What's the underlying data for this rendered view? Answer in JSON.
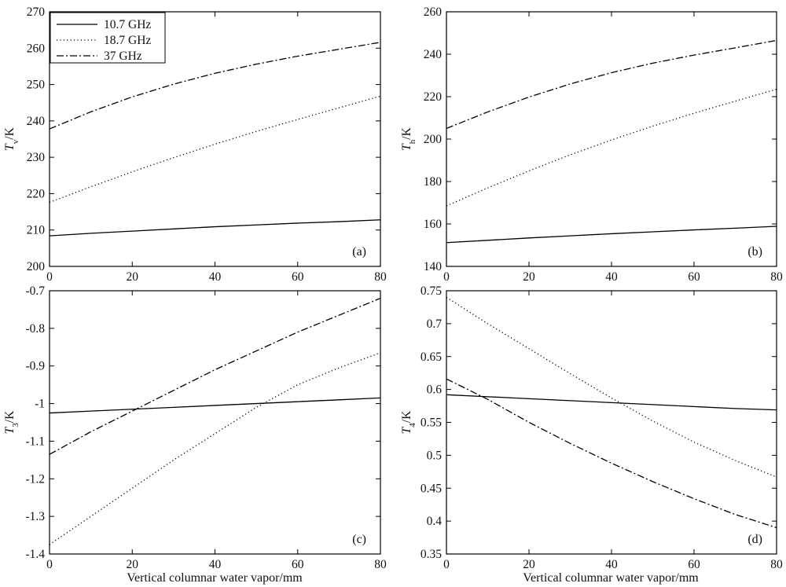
{
  "x_axis_label": "Vertical columnar water vapor/mm",
  "legend": [
    {
      "label": "10.7 GHz",
      "dash": "solid"
    },
    {
      "label": "18.7 GHz",
      "dash": "dotted"
    },
    {
      "label": "37 GHz",
      "dash": "dashdot"
    }
  ],
  "chart_data": [
    {
      "type": "line",
      "panel_label": "(a)",
      "ylabel_main": "T",
      "ylabel_sub": "v",
      "ylabel_unit": "/K",
      "xlim": [
        0,
        80
      ],
      "ylim": [
        200,
        270
      ],
      "xticks": [
        0,
        20,
        40,
        60,
        80
      ],
      "yticks": [
        200,
        210,
        220,
        230,
        240,
        250,
        260,
        270
      ],
      "x": [
        0,
        10,
        20,
        30,
        40,
        50,
        60,
        70,
        80
      ],
      "series": [
        {
          "name": "10.7 GHz",
          "dash": "solid",
          "values": [
            208.4,
            209.1,
            209.7,
            210.3,
            210.9,
            211.4,
            211.9,
            212.3,
            212.8
          ]
        },
        {
          "name": "18.7 GHz",
          "dash": "dotted",
          "values": [
            217.6,
            221.9,
            226.0,
            229.9,
            233.6,
            237.1,
            240.4,
            243.6,
            246.8
          ]
        },
        {
          "name": "37 GHz",
          "dash": "dashdot",
          "values": [
            237.8,
            242.5,
            246.6,
            250.1,
            253.1,
            255.6,
            257.8,
            259.7,
            261.6
          ]
        }
      ]
    },
    {
      "type": "line",
      "panel_label": "(b)",
      "ylabel_main": "T",
      "ylabel_sub": "h",
      "ylabel_unit": "/K",
      "xlim": [
        0,
        80
      ],
      "ylim": [
        140,
        260
      ],
      "xticks": [
        0,
        20,
        40,
        60,
        80
      ],
      "yticks": [
        140,
        160,
        180,
        200,
        220,
        240,
        260
      ],
      "x": [
        0,
        10,
        20,
        30,
        40,
        50,
        60,
        70,
        80
      ],
      "series": [
        {
          "name": "10.7 GHz",
          "dash": "solid",
          "values": [
            151.2,
            152.3,
            153.4,
            154.4,
            155.4,
            156.3,
            157.2,
            158.0,
            158.9
          ]
        },
        {
          "name": "18.7 GHz",
          "dash": "dotted",
          "values": [
            168.5,
            177.0,
            185.0,
            192.6,
            199.6,
            206.1,
            212.2,
            217.9,
            223.5
          ]
        },
        {
          "name": "37 GHz",
          "dash": "dashdot",
          "values": [
            205.0,
            212.8,
            219.8,
            226.0,
            231.3,
            235.8,
            239.6,
            243.0,
            246.5
          ]
        }
      ]
    },
    {
      "type": "line",
      "panel_label": "(c)",
      "ylabel_main": "T",
      "ylabel_sub": "3",
      "ylabel_unit": "/K",
      "xlim": [
        0,
        80
      ],
      "ylim": [
        -1.4,
        -0.7
      ],
      "xticks": [
        0,
        20,
        40,
        60,
        80
      ],
      "yticks": [
        -1.4,
        -1.3,
        -1.2,
        -1.1,
        -1,
        -0.9,
        -0.8,
        -0.7
      ],
      "x": [
        0,
        10,
        20,
        30,
        40,
        50,
        60,
        70,
        80
      ],
      "series": [
        {
          "name": "10.7 GHz",
          "dash": "solid",
          "values": [
            -1.025,
            -1.02,
            -1.015,
            -1.01,
            -1.005,
            -1.0,
            -0.995,
            -0.99,
            -0.985
          ]
        },
        {
          "name": "18.7 GHz",
          "dash": "dotted",
          "values": [
            -1.375,
            -1.3,
            -1.225,
            -1.15,
            -1.08,
            -1.01,
            -0.95,
            -0.905,
            -0.865
          ]
        },
        {
          "name": "37 GHz",
          "dash": "dashdot",
          "values": [
            -1.135,
            -1.075,
            -1.02,
            -0.965,
            -0.91,
            -0.86,
            -0.81,
            -0.765,
            -0.72
          ]
        }
      ]
    },
    {
      "type": "line",
      "panel_label": "(d)",
      "ylabel_main": "T",
      "ylabel_sub": "4",
      "ylabel_unit": "/K",
      "xlim": [
        0,
        80
      ],
      "ylim": [
        0.35,
        0.75
      ],
      "xticks": [
        0,
        20,
        40,
        60,
        80
      ],
      "yticks": [
        0.35,
        0.4,
        0.45,
        0.5,
        0.55,
        0.6,
        0.65,
        0.7,
        0.75
      ],
      "x": [
        0,
        10,
        20,
        30,
        40,
        50,
        60,
        70,
        80
      ],
      "series": [
        {
          "name": "10.7 GHz",
          "dash": "solid",
          "values": [
            0.592,
            0.589,
            0.586,
            0.583,
            0.58,
            0.577,
            0.574,
            0.571,
            0.569
          ]
        },
        {
          "name": "18.7 GHz",
          "dash": "dotted",
          "values": [
            0.74,
            0.7,
            0.662,
            0.624,
            0.587,
            0.552,
            0.52,
            0.492,
            0.467
          ]
        },
        {
          "name": "37 GHz",
          "dash": "dashdot",
          "values": [
            0.616,
            0.585,
            0.55,
            0.518,
            0.488,
            0.46,
            0.434,
            0.41,
            0.39
          ]
        }
      ]
    }
  ]
}
